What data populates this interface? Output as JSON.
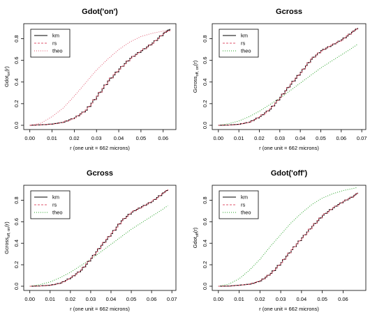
{
  "colors": {
    "km": "#000000",
    "rs": "#df536b",
    "theo_red": "#df536b",
    "theo_green": "#22a022",
    "axis": "#000000"
  },
  "chart_data": [
    {
      "type": "line",
      "title": "Gdot('on')",
      "xlabel": "r (one unit = 662 microns)",
      "ylabel_main": "Gdot",
      "ylabel_sub": "on",
      "ylabel_tail": "(r)",
      "xlim": [
        0,
        0.063
      ],
      "ylim": [
        0,
        0.9
      ],
      "xticks": [
        0.0,
        0.01,
        0.02,
        0.03,
        0.04,
        0.05,
        0.06
      ],
      "xticklabels": [
        "0.00",
        "0.01",
        "0.02",
        "0.03",
        "0.04",
        "0.05",
        "0.06"
      ],
      "yticks": [
        0.0,
        0.2,
        0.4,
        0.6,
        0.8
      ],
      "yticklabels": [
        "0.0",
        "0.2",
        "0.4",
        "0.6",
        "0.8"
      ],
      "legend": {
        "placement": "top-left",
        "entries": [
          "km",
          "rs",
          "theo"
        ]
      },
      "series": [
        {
          "name": "km",
          "style": "solid",
          "color": "#000000",
          "x": [
            0,
            0.005,
            0.01,
            0.015,
            0.02,
            0.025,
            0.03,
            0.035,
            0.04,
            0.045,
            0.05,
            0.055,
            0.06,
            0.063
          ],
          "y": [
            0,
            0.005,
            0.012,
            0.03,
            0.07,
            0.14,
            0.27,
            0.41,
            0.52,
            0.62,
            0.69,
            0.76,
            0.85,
            0.89
          ]
        },
        {
          "name": "rs",
          "style": "dashed",
          "color": "#df536b",
          "x": [
            0,
            0.005,
            0.01,
            0.015,
            0.02,
            0.025,
            0.03,
            0.035,
            0.04,
            0.045,
            0.05,
            0.055,
            0.06,
            0.063
          ],
          "y": [
            0,
            0.005,
            0.012,
            0.03,
            0.07,
            0.14,
            0.27,
            0.41,
            0.52,
            0.62,
            0.69,
            0.76,
            0.85,
            0.88
          ]
        },
        {
          "name": "theo",
          "style": "dotted",
          "color": "#df536b",
          "x": [
            0,
            0.005,
            0.01,
            0.015,
            0.02,
            0.025,
            0.03,
            0.035,
            0.04,
            0.045,
            0.05,
            0.055,
            0.06,
            0.063
          ],
          "y": [
            0,
            0.02,
            0.08,
            0.16,
            0.27,
            0.39,
            0.51,
            0.61,
            0.7,
            0.77,
            0.82,
            0.85,
            0.87,
            0.88
          ]
        }
      ]
    },
    {
      "type": "line",
      "title": "Gcross",
      "xlabel": "r (one unit = 662 microns)",
      "ylabel_main": "Gcross",
      "ylabel_sub": "off, on",
      "ylabel_tail": "(r)",
      "xlim": [
        0,
        0.069
      ],
      "ylim": [
        0,
        0.9
      ],
      "xticks": [
        0.0,
        0.01,
        0.02,
        0.03,
        0.04,
        0.05,
        0.06,
        0.07
      ],
      "xticklabels": [
        "0.00",
        "0.01",
        "0.02",
        "0.03",
        "0.04",
        "0.05",
        "0.06",
        "0.07"
      ],
      "yticks": [
        0.0,
        0.2,
        0.4,
        0.6,
        0.8
      ],
      "yticklabels": [
        "0.0",
        "0.2",
        "0.4",
        "0.6",
        "0.8"
      ],
      "legend": {
        "placement": "top-left",
        "entries": [
          "km",
          "rs",
          "theo"
        ]
      },
      "series": [
        {
          "name": "km",
          "style": "solid",
          "color": "#000000",
          "x": [
            0,
            0.005,
            0.01,
            0.015,
            0.02,
            0.025,
            0.03,
            0.035,
            0.04,
            0.045,
            0.05,
            0.055,
            0.06,
            0.065,
            0.068
          ],
          "y": [
            0,
            0.003,
            0.01,
            0.03,
            0.08,
            0.15,
            0.26,
            0.38,
            0.49,
            0.61,
            0.69,
            0.74,
            0.79,
            0.86,
            0.9
          ]
        },
        {
          "name": "rs",
          "style": "dashed",
          "color": "#df536b",
          "x": [
            0,
            0.005,
            0.01,
            0.015,
            0.02,
            0.025,
            0.03,
            0.035,
            0.04,
            0.045,
            0.05,
            0.055,
            0.06,
            0.065,
            0.068
          ],
          "y": [
            0,
            0.003,
            0.01,
            0.03,
            0.08,
            0.15,
            0.26,
            0.38,
            0.49,
            0.61,
            0.69,
            0.74,
            0.79,
            0.86,
            0.9
          ]
        },
        {
          "name": "theo",
          "style": "dotted",
          "color": "#22a022",
          "x": [
            0,
            0.005,
            0.01,
            0.015,
            0.02,
            0.025,
            0.03,
            0.035,
            0.04,
            0.045,
            0.05,
            0.055,
            0.06,
            0.065,
            0.068
          ],
          "y": [
            0,
            0.015,
            0.04,
            0.08,
            0.13,
            0.19,
            0.25,
            0.32,
            0.39,
            0.46,
            0.53,
            0.59,
            0.65,
            0.71,
            0.75
          ]
        }
      ]
    },
    {
      "type": "line",
      "title": "Gcross",
      "xlabel": "r (one unit = 662 microns)",
      "ylabel_main": "Gcross",
      "ylabel_sub": "off, on",
      "ylabel_tail": "(r)",
      "xlim": [
        0,
        0.069
      ],
      "ylim": [
        0,
        0.9
      ],
      "xticks": [
        0.0,
        0.01,
        0.02,
        0.03,
        0.04,
        0.05,
        0.06,
        0.07
      ],
      "xticklabels": [
        "0.00",
        "0.01",
        "0.02",
        "0.03",
        "0.04",
        "0.05",
        "0.06",
        "0.07"
      ],
      "yticks": [
        0.0,
        0.2,
        0.4,
        0.6,
        0.8
      ],
      "yticklabels": [
        "0.0",
        "0.2",
        "0.4",
        "0.6",
        "0.8"
      ],
      "legend": {
        "placement": "top-left",
        "entries": [
          "km",
          "rs",
          "theo"
        ]
      },
      "series": [
        {
          "name": "km",
          "style": "solid",
          "color": "#000000",
          "x": [
            0,
            0.005,
            0.01,
            0.015,
            0.02,
            0.025,
            0.03,
            0.035,
            0.04,
            0.045,
            0.05,
            0.055,
            0.06,
            0.065,
            0.068
          ],
          "y": [
            0,
            0.003,
            0.01,
            0.03,
            0.08,
            0.15,
            0.26,
            0.38,
            0.49,
            0.61,
            0.69,
            0.74,
            0.79,
            0.86,
            0.9
          ]
        },
        {
          "name": "rs",
          "style": "dashed",
          "color": "#df536b",
          "x": [
            0,
            0.005,
            0.01,
            0.015,
            0.02,
            0.025,
            0.03,
            0.035,
            0.04,
            0.045,
            0.05,
            0.055,
            0.06,
            0.065,
            0.068
          ],
          "y": [
            0,
            0.003,
            0.01,
            0.03,
            0.08,
            0.15,
            0.26,
            0.38,
            0.49,
            0.61,
            0.69,
            0.74,
            0.79,
            0.86,
            0.9
          ]
        },
        {
          "name": "theo",
          "style": "dotted",
          "color": "#22a022",
          "x": [
            0,
            0.005,
            0.01,
            0.015,
            0.02,
            0.025,
            0.03,
            0.035,
            0.04,
            0.045,
            0.05,
            0.055,
            0.06,
            0.065,
            0.068
          ],
          "y": [
            0,
            0.015,
            0.04,
            0.08,
            0.13,
            0.19,
            0.25,
            0.32,
            0.39,
            0.46,
            0.53,
            0.59,
            0.65,
            0.71,
            0.75
          ]
        }
      ]
    },
    {
      "type": "line",
      "title": "Gdot('off')",
      "xlabel": "r (one unit = 662 microns)",
      "ylabel_main": "Gdot",
      "ylabel_sub": "off",
      "ylabel_tail": "(r)",
      "xlim": [
        0,
        0.068
      ],
      "ylim": [
        0,
        0.9
      ],
      "xticks": [
        0.0,
        0.01,
        0.02,
        0.03,
        0.04,
        0.05,
        0.06
      ],
      "xticklabels": [
        "0.00",
        "0.01",
        "0.02",
        "0.03",
        "0.04",
        "0.05",
        "0.06"
      ],
      "yticks": [
        0.0,
        0.2,
        0.4,
        0.6,
        0.8
      ],
      "yticklabels": [
        "0.0",
        "0.2",
        "0.4",
        "0.6",
        "0.8"
      ],
      "legend": {
        "placement": "top-left",
        "entries": [
          "km",
          "rs",
          "theo"
        ]
      },
      "series": [
        {
          "name": "km",
          "style": "solid",
          "color": "#000000",
          "x": [
            0,
            0.005,
            0.01,
            0.015,
            0.02,
            0.025,
            0.03,
            0.035,
            0.04,
            0.045,
            0.05,
            0.055,
            0.06,
            0.065,
            0.067
          ],
          "y": [
            0,
            0.002,
            0.01,
            0.02,
            0.05,
            0.12,
            0.22,
            0.34,
            0.45,
            0.56,
            0.66,
            0.73,
            0.79,
            0.84,
            0.87
          ]
        },
        {
          "name": "rs",
          "style": "dashed",
          "color": "#df536b",
          "x": [
            0,
            0.005,
            0.01,
            0.015,
            0.02,
            0.025,
            0.03,
            0.035,
            0.04,
            0.045,
            0.05,
            0.055,
            0.06,
            0.065,
            0.067
          ],
          "y": [
            0,
            0.002,
            0.01,
            0.02,
            0.05,
            0.12,
            0.22,
            0.34,
            0.45,
            0.56,
            0.66,
            0.73,
            0.79,
            0.84,
            0.87
          ]
        },
        {
          "name": "theo",
          "style": "dotted",
          "color": "#22a022",
          "x": [
            0,
            0.005,
            0.01,
            0.015,
            0.02,
            0.025,
            0.03,
            0.035,
            0.04,
            0.045,
            0.05,
            0.055,
            0.06,
            0.065,
            0.067
          ],
          "y": [
            0,
            0.02,
            0.07,
            0.15,
            0.25,
            0.37,
            0.48,
            0.59,
            0.68,
            0.76,
            0.82,
            0.86,
            0.89,
            0.91,
            0.92
          ]
        }
      ]
    }
  ]
}
